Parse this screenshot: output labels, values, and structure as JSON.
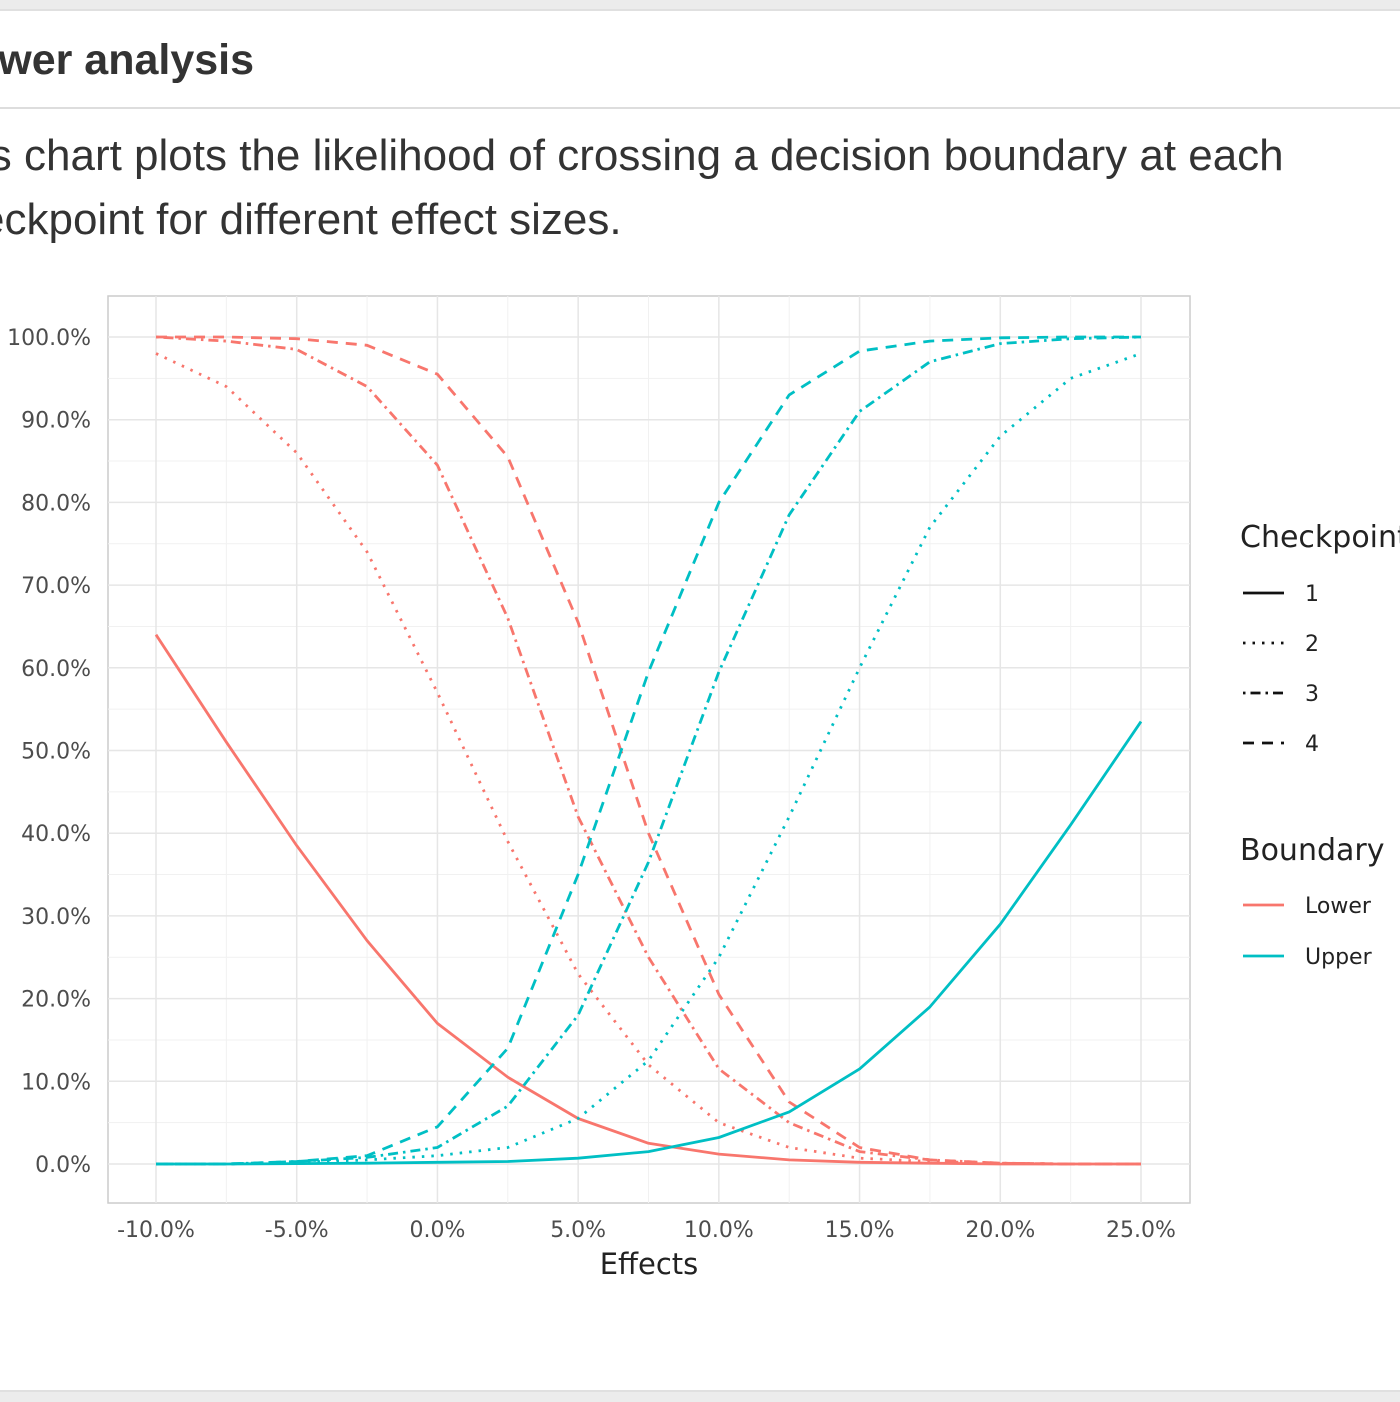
{
  "page": {
    "heading": "ower analysis",
    "description_line1": "is chart plots the likelihood of crossing a decision boundary at each",
    "description_line2": "eckpoint for different effect sizes."
  },
  "colors": {
    "lower": "#f8766d",
    "upper": "#00bfc4",
    "grid_major": "#e6e6e6",
    "grid_minor": "#f1f1f1",
    "panel_border": "#cccccc"
  },
  "chart_data": {
    "type": "line",
    "title": "",
    "xlabel": "Effects",
    "ylabel": "",
    "xlim": [
      -10,
      25
    ],
    "ylim": [
      0,
      100
    ],
    "x": [
      -10,
      -7.5,
      -5,
      -2.5,
      0,
      2.5,
      5,
      7.5,
      10,
      12.5,
      15,
      17.5,
      20,
      22.5,
      25
    ],
    "x_ticks": [
      -10,
      -5,
      0,
      5,
      10,
      15,
      20,
      25
    ],
    "x_tick_labels": [
      "-10.0%",
      "-5.0%",
      "0.0%",
      "5.0%",
      "10.0%",
      "15.0%",
      "20.0%",
      "25.0%"
    ],
    "y_ticks": [
      0,
      10,
      20,
      30,
      40,
      50,
      60,
      70,
      80,
      90,
      100
    ],
    "y_tick_labels": [
      "0.0%",
      "10.0%",
      "20.0%",
      "30.0%",
      "40.0%",
      "50.0%",
      "60.0%",
      "70.0%",
      "80.0%",
      "90.0%",
      "100.0%"
    ],
    "grid": true,
    "legend": {
      "placement": "right",
      "checkpoint_title": "Checkpoint",
      "checkpoints": [
        {
          "label": "1",
          "dash": "solid"
        },
        {
          "label": "2",
          "dash": "dotted"
        },
        {
          "label": "3",
          "dash": "dotdash"
        },
        {
          "label": "4",
          "dash": "dashed"
        }
      ],
      "boundary_title": "Boundary",
      "boundaries": [
        {
          "label": "Lower",
          "color": "#f8766d"
        },
        {
          "label": "Upper",
          "color": "#00bfc4"
        }
      ]
    },
    "series": [
      {
        "name": "Lower 1",
        "boundary": "Lower",
        "checkpoint": "1",
        "values": [
          64,
          51,
          38.5,
          27,
          17,
          10.5,
          5.5,
          2.5,
          1.2,
          0.5,
          0.2,
          0.1,
          0,
          0,
          0
        ]
      },
      {
        "name": "Lower 2",
        "boundary": "Lower",
        "checkpoint": "2",
        "values": [
          98,
          94,
          86,
          74,
          57,
          39,
          23,
          12,
          5,
          2,
          0.7,
          0.3,
          0.1,
          0,
          0
        ]
      },
      {
        "name": "Lower 3",
        "boundary": "Lower",
        "checkpoint": "3",
        "values": [
          100,
          99.5,
          98.5,
          94,
          84.5,
          66,
          42,
          25,
          11.5,
          5,
          1.5,
          0.5,
          0.1,
          0,
          0
        ]
      },
      {
        "name": "Lower 4",
        "boundary": "Lower",
        "checkpoint": "4",
        "values": [
          100,
          100,
          99.8,
          99,
          95.5,
          85.5,
          65.5,
          40,
          20.5,
          7.5,
          2,
          0.5,
          0.1,
          0,
          0
        ]
      },
      {
        "name": "Upper 1",
        "boundary": "Upper",
        "checkpoint": "1",
        "values": [
          0,
          0,
          0.05,
          0.1,
          0.2,
          0.3,
          0.7,
          1.5,
          3.2,
          6.3,
          11.5,
          19,
          29,
          41,
          53.5
        ]
      },
      {
        "name": "Upper 2",
        "boundary": "Upper",
        "checkpoint": "2",
        "values": [
          0,
          0,
          0.2,
          0.5,
          1,
          2,
          5.5,
          12.5,
          25,
          42,
          60,
          77,
          88,
          95,
          98
        ]
      },
      {
        "name": "Upper 3",
        "boundary": "Upper",
        "checkpoint": "3",
        "values": [
          0,
          0,
          0.3,
          0.8,
          2,
          7,
          18,
          36.5,
          59.5,
          78.5,
          91,
          97,
          99.2,
          99.8,
          100
        ]
      },
      {
        "name": "Upper 4",
        "boundary": "Upper",
        "checkpoint": "4",
        "values": [
          0,
          0,
          0.3,
          1,
          4.5,
          14,
          35,
          59.5,
          80,
          93,
          98.3,
          99.5,
          99.9,
          100,
          100
        ]
      }
    ]
  }
}
